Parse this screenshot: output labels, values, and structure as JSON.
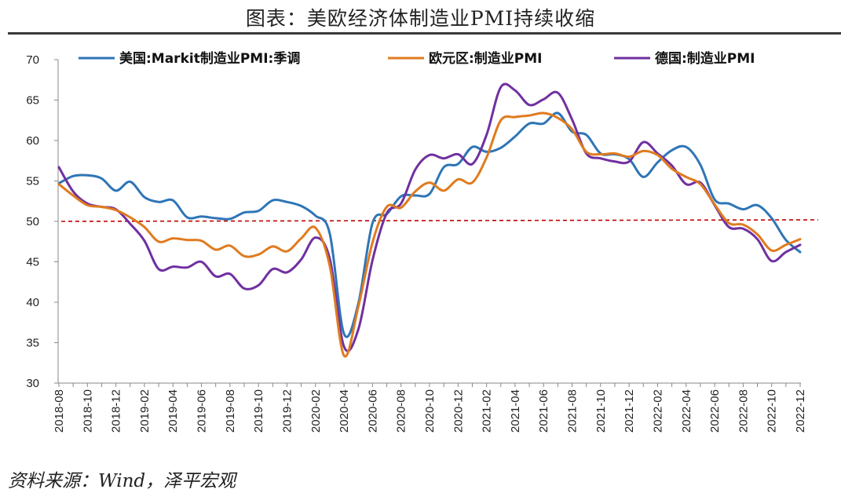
{
  "title": "图表：美欧经济体制造业PMI持续收缩",
  "source": "资料来源：Wind，泽平宏观",
  "chart_data": {
    "type": "line",
    "ylim": [
      30,
      70
    ],
    "yticks": [
      30,
      35,
      40,
      45,
      50,
      55,
      60,
      65,
      70
    ],
    "reference_line": {
      "value": 50,
      "style": "dashed",
      "color": "#c00000"
    },
    "x": [
      "2018-08",
      "2018-09",
      "2018-10",
      "2018-11",
      "2018-12",
      "2019-01",
      "2019-02",
      "2019-03",
      "2019-04",
      "2019-05",
      "2019-06",
      "2019-07",
      "2019-08",
      "2019-09",
      "2019-10",
      "2019-11",
      "2019-12",
      "2020-01",
      "2020-02",
      "2020-03",
      "2020-04",
      "2020-05",
      "2020-06",
      "2020-07",
      "2020-08",
      "2020-09",
      "2020-10",
      "2020-11",
      "2020-12",
      "2021-01",
      "2021-02",
      "2021-03",
      "2021-04",
      "2021-05",
      "2021-06",
      "2021-07",
      "2021-08",
      "2021-09",
      "2021-10",
      "2021-11",
      "2021-12",
      "2022-01",
      "2022-02",
      "2022-03",
      "2022-04",
      "2022-05",
      "2022-06",
      "2022-07",
      "2022-08",
      "2022-09",
      "2022-10",
      "2022-11",
      "2022-12"
    ],
    "xtick_labels": [
      "2018-08",
      "2018-10",
      "2018-12",
      "2019-02",
      "2019-04",
      "2019-06",
      "2019-08",
      "2019-10",
      "2019-12",
      "2020-02",
      "2020-04",
      "2020-06",
      "2020-08",
      "2020-10",
      "2020-12",
      "2021-02",
      "2021-04",
      "2021-06",
      "2021-08",
      "2021-10",
      "2021-12",
      "2022-02",
      "2022-04",
      "2022-06",
      "2022-08",
      "2022-10",
      "2022-12"
    ],
    "legend_position": "top",
    "series": [
      {
        "name": "美国:Markit制造业PMI:季调",
        "color": "#2e75b6",
        "values": [
          54.7,
          55.6,
          55.7,
          55.3,
          53.8,
          54.9,
          53.0,
          52.4,
          52.6,
          50.5,
          50.6,
          50.4,
          50.3,
          51.1,
          51.3,
          52.6,
          52.4,
          51.9,
          50.7,
          48.5,
          36.1,
          39.8,
          49.8,
          50.9,
          53.1,
          53.2,
          53.4,
          56.7,
          57.1,
          59.2,
          58.6,
          59.1,
          60.5,
          62.1,
          62.1,
          63.4,
          61.1,
          60.7,
          58.4,
          58.3,
          57.7,
          55.5,
          57.3,
          58.8,
          59.2,
          57.0,
          52.7,
          52.2,
          51.5,
          52.0,
          50.4,
          47.7,
          46.2
        ]
      },
      {
        "name": "欧元区:制造业PMI",
        "color": "#e07b1f",
        "values": [
          54.6,
          53.2,
          52.0,
          51.8,
          51.4,
          50.5,
          49.3,
          47.5,
          47.9,
          47.7,
          47.6,
          46.5,
          47.0,
          45.7,
          45.9,
          46.9,
          46.3,
          47.9,
          49.2,
          44.5,
          33.4,
          39.4,
          47.4,
          51.8,
          51.7,
          53.7,
          54.8,
          53.8,
          55.2,
          54.8,
          57.9,
          62.5,
          62.9,
          63.1,
          63.4,
          62.8,
          61.4,
          58.6,
          58.3,
          58.4,
          58.0,
          58.7,
          58.2,
          56.5,
          55.5,
          54.6,
          52.1,
          49.8,
          49.6,
          48.4,
          46.4,
          47.1,
          47.8
        ]
      },
      {
        "name": "德国:制造业PMI",
        "color": "#7030a0",
        "values": [
          56.7,
          53.7,
          52.2,
          51.8,
          51.5,
          49.7,
          47.6,
          44.1,
          44.4,
          44.3,
          45.0,
          43.2,
          43.5,
          41.7,
          42.1,
          44.1,
          43.7,
          45.3,
          48.0,
          45.4,
          34.5,
          36.6,
          45.2,
          51.0,
          52.2,
          56.4,
          58.2,
          57.8,
          58.3,
          57.1,
          60.7,
          66.6,
          66.2,
          64.4,
          65.1,
          65.9,
          62.6,
          58.4,
          57.8,
          57.4,
          57.4,
          59.8,
          58.4,
          56.9,
          54.6,
          54.8,
          52.0,
          49.3,
          49.1,
          47.8,
          45.1,
          46.2,
          47.1
        ]
      }
    ]
  }
}
